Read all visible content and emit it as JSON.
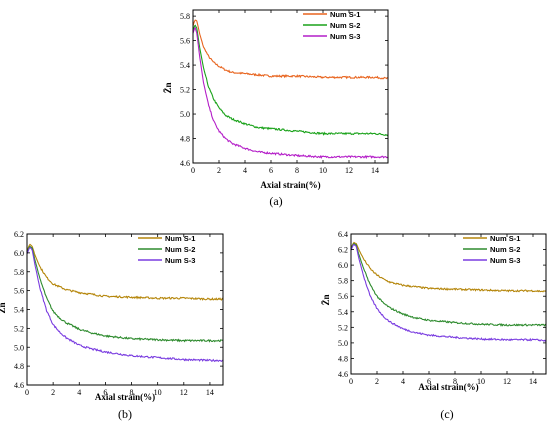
{
  "chart_data": [
    {
      "type": "line",
      "panel_label": "(a)",
      "xlabel": "Axial strain(%)",
      "ylabel": "Z̄n",
      "xlim": [
        0,
        15
      ],
      "ylim": [
        4.6,
        5.85
      ],
      "xticks": [
        0,
        2,
        4,
        6,
        8,
        10,
        12,
        14
      ],
      "yticks": [
        4.6,
        4.8,
        5.0,
        5.2,
        5.4,
        5.6,
        5.8
      ],
      "xtick_labels": [
        "0",
        "2",
        "4",
        "6",
        "8",
        "10",
        "12",
        "14"
      ],
      "ytick_labels": [
        "4.6",
        "4.8",
        "5.0",
        "5.2",
        "5.4",
        "5.6",
        "5.8"
      ],
      "legend": "top-right",
      "series": [
        {
          "name": "Num S-1",
          "color": "#e8641e",
          "x": [
            0,
            0.15,
            0.3,
            0.5,
            0.8,
            1.2,
            1.6,
            2,
            2.5,
            3,
            4,
            5,
            6,
            8,
            10,
            12,
            14,
            15
          ],
          "y": [
            5.72,
            5.77,
            5.76,
            5.66,
            5.55,
            5.47,
            5.42,
            5.39,
            5.36,
            5.34,
            5.33,
            5.32,
            5.31,
            5.31,
            5.3,
            5.3,
            5.3,
            5.29
          ]
        },
        {
          "name": "Num S-2",
          "color": "#1aa21a",
          "x": [
            0,
            0.15,
            0.3,
            0.5,
            0.8,
            1.2,
            1.6,
            2,
            2.5,
            3,
            4,
            5,
            6,
            8,
            10,
            12,
            14,
            15
          ],
          "y": [
            5.68,
            5.73,
            5.7,
            5.55,
            5.38,
            5.22,
            5.12,
            5.05,
            4.99,
            4.96,
            4.92,
            4.89,
            4.88,
            4.86,
            4.84,
            4.84,
            4.84,
            4.83
          ]
        },
        {
          "name": "Num S-3",
          "color": "#b41ec8",
          "x": [
            0,
            0.15,
            0.3,
            0.5,
            0.8,
            1.2,
            1.6,
            2,
            2.5,
            3,
            4,
            5,
            6,
            8,
            10,
            12,
            14,
            15
          ],
          "y": [
            5.66,
            5.71,
            5.66,
            5.48,
            5.26,
            5.07,
            4.94,
            4.86,
            4.8,
            4.76,
            4.72,
            4.69,
            4.68,
            4.66,
            4.65,
            4.65,
            4.65,
            4.65
          ]
        }
      ]
    },
    {
      "type": "line",
      "panel_label": "(b)",
      "xlabel": "Axial strain(%)",
      "ylabel": "Z̄n",
      "xlim": [
        0,
        15
      ],
      "ylim": [
        4.6,
        6.2
      ],
      "xticks": [
        0,
        2,
        4,
        6,
        8,
        10,
        12,
        14
      ],
      "yticks": [
        4.6,
        4.8,
        5.0,
        5.2,
        5.4,
        5.6,
        5.8,
        6.0,
        6.2
      ],
      "xtick_labels": [
        "0",
        "2",
        "4",
        "6",
        "8",
        "10",
        "12",
        "14"
      ],
      "ytick_labels": [
        "4.6",
        "4.8",
        "5.0",
        "5.2",
        "5.4",
        "5.6",
        "5.8",
        "6.0",
        "6.2"
      ],
      "legend": "top-right",
      "series": [
        {
          "name": "Num S-1",
          "color": "#b5860b",
          "x": [
            0,
            0.2,
            0.4,
            0.6,
            1,
            1.5,
            2,
            2.5,
            3,
            4,
            5,
            6,
            8,
            10,
            12,
            14,
            15
          ],
          "y": [
            6.02,
            6.09,
            6.07,
            5.98,
            5.85,
            5.74,
            5.67,
            5.64,
            5.61,
            5.58,
            5.56,
            5.54,
            5.53,
            5.52,
            5.52,
            5.51,
            5.51
          ]
        },
        {
          "name": "Num S-2",
          "color": "#2e8b2e",
          "x": [
            0,
            0.2,
            0.4,
            0.6,
            1,
            1.5,
            2,
            2.5,
            3,
            4,
            5,
            6,
            8,
            10,
            12,
            14,
            15
          ],
          "y": [
            6.0,
            6.07,
            6.05,
            5.93,
            5.72,
            5.52,
            5.38,
            5.31,
            5.26,
            5.19,
            5.15,
            5.12,
            5.09,
            5.08,
            5.07,
            5.07,
            5.07
          ]
        },
        {
          "name": "Num S-3",
          "color": "#7a3de0",
          "x": [
            0,
            0.2,
            0.4,
            0.6,
            1,
            1.5,
            2,
            2.5,
            3,
            4,
            5,
            6,
            8,
            10,
            12,
            14,
            15
          ],
          "y": [
            5.99,
            6.06,
            6.03,
            5.88,
            5.62,
            5.39,
            5.24,
            5.16,
            5.1,
            5.02,
            4.98,
            4.95,
            4.91,
            4.89,
            4.87,
            4.86,
            4.86
          ]
        }
      ]
    },
    {
      "type": "line",
      "panel_label": "(c)",
      "xlabel": "Axial strain(%)",
      "ylabel": "Z̄n",
      "xlim": [
        0,
        15
      ],
      "ylim": [
        4.6,
        6.4
      ],
      "xticks": [
        0,
        2,
        4,
        6,
        8,
        10,
        12,
        14
      ],
      "yticks": [
        4.6,
        4.8,
        5.0,
        5.2,
        5.4,
        5.6,
        5.8,
        6.0,
        6.2,
        6.4
      ],
      "xtick_labels": [
        "0",
        "2",
        "4",
        "6",
        "8",
        "10",
        "12",
        "14"
      ],
      "ytick_labels": [
        "4.6",
        "4.8",
        "5.0",
        "5.2",
        "5.4",
        "5.6",
        "5.8",
        "6.0",
        "6.2",
        "6.4"
      ],
      "legend": "top-right",
      "series": [
        {
          "name": "Num S-1",
          "color": "#b5860b",
          "x": [
            0,
            0.2,
            0.4,
            0.6,
            1,
            1.5,
            2,
            2.5,
            3,
            4,
            5,
            6,
            8,
            10,
            12,
            14,
            15
          ],
          "y": [
            6.22,
            6.29,
            6.28,
            6.2,
            6.07,
            5.95,
            5.87,
            5.82,
            5.78,
            5.74,
            5.72,
            5.7,
            5.69,
            5.68,
            5.67,
            5.67,
            5.66
          ]
        },
        {
          "name": "Num S-2",
          "color": "#2e8b2e",
          "x": [
            0,
            0.2,
            0.4,
            0.6,
            1,
            1.5,
            2,
            2.5,
            3,
            4,
            5,
            6,
            8,
            10,
            12,
            14,
            15
          ],
          "y": [
            6.2,
            6.28,
            6.26,
            6.14,
            5.94,
            5.74,
            5.6,
            5.51,
            5.45,
            5.37,
            5.32,
            5.29,
            5.26,
            5.24,
            5.23,
            5.23,
            5.23
          ]
        },
        {
          "name": "Num S-3",
          "color": "#7a3de0",
          "x": [
            0,
            0.2,
            0.4,
            0.6,
            1,
            1.5,
            2,
            2.5,
            3,
            4,
            5,
            6,
            8,
            10,
            12,
            14,
            15
          ],
          "y": [
            6.19,
            6.27,
            6.24,
            6.09,
            5.84,
            5.59,
            5.44,
            5.34,
            5.27,
            5.18,
            5.13,
            5.1,
            5.07,
            5.05,
            5.04,
            5.04,
            5.03
          ]
        }
      ]
    }
  ]
}
